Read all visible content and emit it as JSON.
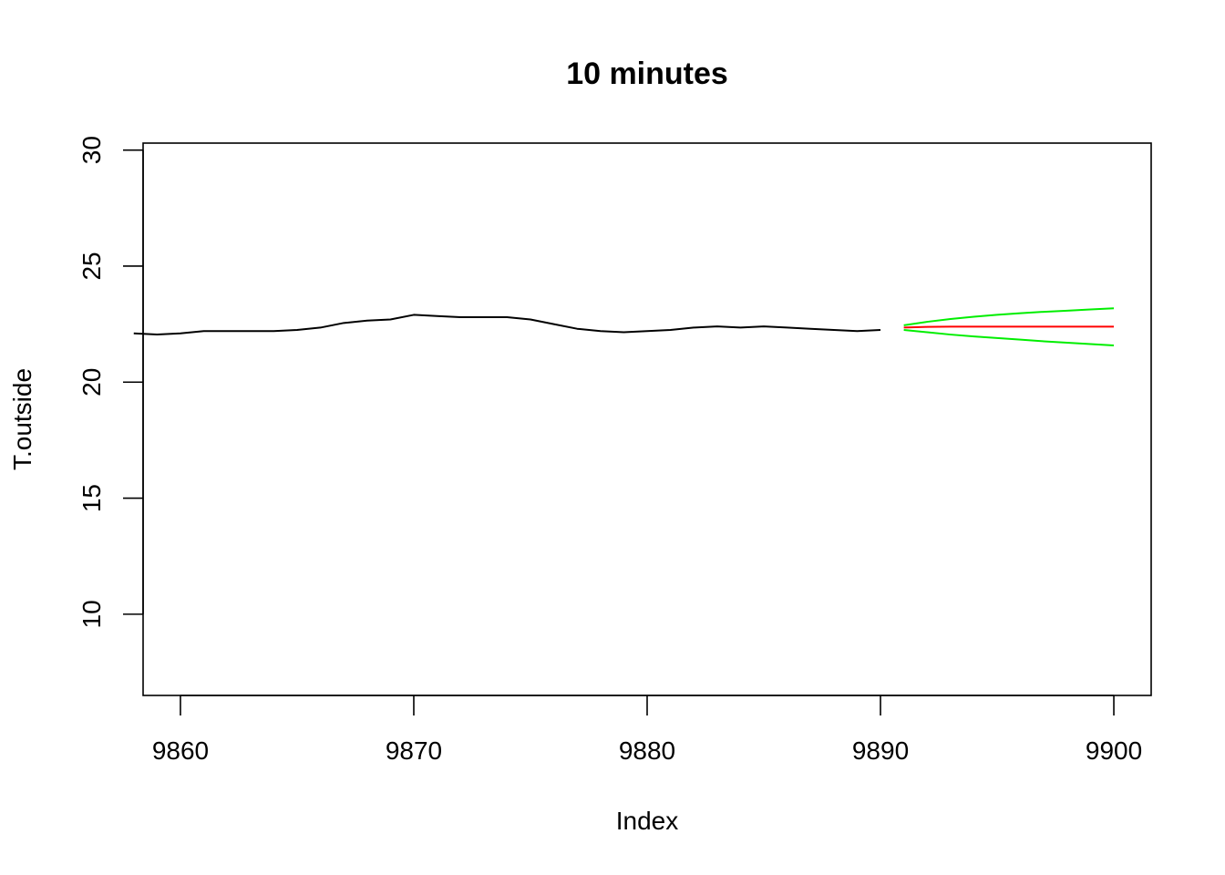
{
  "chart_data": {
    "type": "line",
    "title": "10 minutes",
    "xlabel": "Index",
    "ylabel": "T.outside",
    "xlim": [
      9858.4,
      9901.6
    ],
    "ylim": [
      6.5,
      30.3
    ],
    "xticks": [
      9860,
      9870,
      9880,
      9890,
      9900
    ],
    "yticks": [
      10,
      15,
      20,
      25,
      30
    ],
    "grid": false,
    "legend": "none",
    "series": [
      {
        "color": "#000000",
        "x": [
          9858,
          9859,
          9860,
          9861,
          9862,
          9863,
          9864,
          9865,
          9866,
          9867,
          9868,
          9869,
          9870,
          9871,
          9872,
          9873,
          9874,
          9875,
          9876,
          9877,
          9878,
          9879,
          9880,
          9881,
          9882,
          9883,
          9884,
          9885,
          9886,
          9887,
          9888,
          9889,
          9890
        ],
        "values": [
          22.1,
          22.05,
          22.1,
          22.2,
          22.2,
          22.2,
          22.2,
          22.25,
          22.35,
          22.55,
          22.65,
          22.7,
          22.9,
          22.85,
          22.8,
          22.8,
          22.8,
          22.7,
          22.5,
          22.3,
          22.2,
          22.15,
          22.2,
          22.25,
          22.35,
          22.4,
          22.35,
          22.4,
          22.35,
          22.3,
          22.25,
          22.2,
          22.25
        ]
      },
      {
        "color": "#ff0000",
        "x": [
          9891,
          9892,
          9893,
          9894,
          9895,
          9896,
          9897,
          9898,
          9899,
          9900
        ],
        "values": [
          22.35,
          22.38,
          22.39,
          22.39,
          22.39,
          22.39,
          22.39,
          22.39,
          22.39,
          22.39
        ]
      },
      {
        "color": "#00ee00",
        "x": [
          9891,
          9892,
          9893,
          9894,
          9895,
          9896,
          9897,
          9898,
          9899,
          9900
        ],
        "values": [
          22.45,
          22.6,
          22.72,
          22.82,
          22.9,
          22.97,
          23.03,
          23.08,
          23.13,
          23.18
        ]
      },
      {
        "color": "#00ee00",
        "x": [
          9891,
          9892,
          9893,
          9894,
          9895,
          9896,
          9897,
          9898,
          9899,
          9900
        ],
        "values": [
          22.25,
          22.15,
          22.05,
          21.97,
          21.9,
          21.83,
          21.76,
          21.7,
          21.64,
          21.58
        ]
      }
    ]
  }
}
